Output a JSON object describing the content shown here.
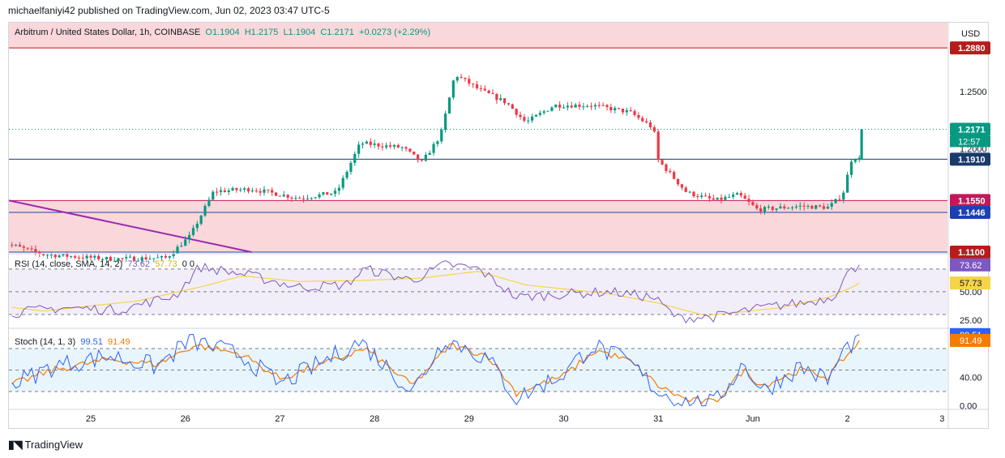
{
  "header": {
    "published": "michaelfaniyi42 published on TradingView.com, Jun 02, 2023 03:47 UTC-5"
  },
  "price_legend": {
    "symbol": "Arbitrum / United States Dollar, 1h, COINBASE",
    "open": "O1.1904",
    "high": "H1.2175",
    "low": "L1.1904",
    "close": "C1.2171",
    "change": "+0.0273 (+2.29%)"
  },
  "rsi_legend": {
    "label": "RSI (14, close, SMA, 14, 2)",
    "rsi": "73.62",
    "sma": "57.73",
    "extra": "0 0"
  },
  "stoch_legend": {
    "label": "Stoch (14, 1, 3)",
    "k": "99.51",
    "d": "91.49"
  },
  "footer": {
    "brand": "TradingView"
  },
  "colors": {
    "up": "#089981",
    "down": "#f23645",
    "zone": "#f8d0d4",
    "rsi_line": "#7e57c2",
    "rsi_sma": "#f5d547",
    "stoch_k": "#2962ff",
    "stoch_d": "#f57c00",
    "trendline": "#9c27b0"
  },
  "chart_data": [
    {
      "type": "candlestick",
      "title": "Arbitrum / United States Dollar, 1h, COINBASE",
      "currency": "USD",
      "x_ticks": [
        "25",
        "26",
        "27",
        "28",
        "29",
        "30",
        "31",
        "Jun",
        "2",
        "3"
      ],
      "y_ticks": [
        "1.2500",
        "1.2000"
      ],
      "ylim": [
        1.11,
        1.31
      ],
      "price_labels": [
        "1.2880",
        "1.2171",
        "12:57",
        "1.1910",
        "1.1550",
        "1.1446",
        "1.1100"
      ],
      "horizontal_levels": [
        1.288,
        1.191,
        1.155,
        1.1446,
        1.11
      ],
      "current_price": 1.2171,
      "countdown": "12:57",
      "zones": [
        {
          "from": 1.288,
          "to": 1.31
        },
        {
          "from": 1.11,
          "to": 1.155
        }
      ],
      "trendline": {
        "from": {
          "day": 24.0,
          "price": 1.155
        },
        "to": {
          "day": 26.7,
          "price": 1.11
        }
      },
      "anchors": [
        {
          "day": 24.0,
          "price": 1.12
        },
        {
          "day": 24.5,
          "price": 1.108
        },
        {
          "day": 25.2,
          "price": 1.104
        },
        {
          "day": 25.8,
          "price": 1.105
        },
        {
          "day": 26.05,
          "price": 1.124
        },
        {
          "day": 26.3,
          "price": 1.163
        },
        {
          "day": 26.7,
          "price": 1.165
        },
        {
          "day": 27.2,
          "price": 1.157
        },
        {
          "day": 27.6,
          "price": 1.162
        },
        {
          "day": 27.85,
          "price": 1.205
        },
        {
          "day": 28.3,
          "price": 1.201
        },
        {
          "day": 28.5,
          "price": 1.188
        },
        {
          "day": 28.7,
          "price": 1.212
        },
        {
          "day": 28.85,
          "price": 1.265
        },
        {
          "day": 29.1,
          "price": 1.252
        },
        {
          "day": 29.4,
          "price": 1.24
        },
        {
          "day": 29.6,
          "price": 1.223
        },
        {
          "day": 29.9,
          "price": 1.238
        },
        {
          "day": 30.3,
          "price": 1.238
        },
        {
          "day": 30.7,
          "price": 1.232
        },
        {
          "day": 30.95,
          "price": 1.218
        },
        {
          "day": 31.0,
          "price": 1.19
        },
        {
          "day": 31.3,
          "price": 1.162
        },
        {
          "day": 31.6,
          "price": 1.155
        },
        {
          "day": 31.85,
          "price": 1.16
        },
        {
          "day": 32.05,
          "price": 1.147
        },
        {
          "day": 32.5,
          "price": 1.15
        },
        {
          "day": 32.8,
          "price": 1.149
        },
        {
          "day": 32.95,
          "price": 1.16
        },
        {
          "day": 33.05,
          "price": 1.193
        },
        {
          "day": 33.15,
          "price": 1.1904
        }
      ],
      "last_candle": {
        "open": 1.1904,
        "high": 1.2175,
        "low": 1.1904,
        "close": 1.2171
      }
    },
    {
      "type": "line",
      "title": "RSI (14, close, SMA, 14, 2)",
      "y_ticks": [
        "50.00",
        "25.00"
      ],
      "levels": [
        70,
        50,
        30
      ],
      "ylim": [
        20,
        82
      ],
      "last_values": {
        "rsi": 73.62,
        "sma": 57.73
      },
      "rsi_anchors": [
        {
          "day": 24.0,
          "v": 30
        },
        {
          "day": 24.7,
          "v": 36
        },
        {
          "day": 25.3,
          "v": 34
        },
        {
          "day": 25.9,
          "v": 47
        },
        {
          "day": 26.15,
          "v": 72
        },
        {
          "day": 26.7,
          "v": 64
        },
        {
          "day": 27.2,
          "v": 54
        },
        {
          "day": 27.7,
          "v": 56
        },
        {
          "day": 27.9,
          "v": 70
        },
        {
          "day": 28.4,
          "v": 60
        },
        {
          "day": 28.75,
          "v": 74
        },
        {
          "day": 29.1,
          "v": 70
        },
        {
          "day": 29.5,
          "v": 45
        },
        {
          "day": 30.0,
          "v": 48
        },
        {
          "day": 30.5,
          "v": 50
        },
        {
          "day": 30.95,
          "v": 45
        },
        {
          "day": 31.2,
          "v": 27
        },
        {
          "day": 31.6,
          "v": 28
        },
        {
          "day": 32.1,
          "v": 36
        },
        {
          "day": 32.6,
          "v": 41
        },
        {
          "day": 32.85,
          "v": 46
        },
        {
          "day": 33.0,
          "v": 66
        },
        {
          "day": 33.15,
          "v": 73.62
        }
      ],
      "sma_anchors": [
        {
          "day": 24.0,
          "v": 38
        },
        {
          "day": 24.5,
          "v": 33
        },
        {
          "day": 25.5,
          "v": 42
        },
        {
          "day": 26.2,
          "v": 55
        },
        {
          "day": 26.6,
          "v": 64
        },
        {
          "day": 27.2,
          "v": 59
        },
        {
          "day": 27.9,
          "v": 60
        },
        {
          "day": 28.5,
          "v": 62
        },
        {
          "day": 29.1,
          "v": 68
        },
        {
          "day": 29.6,
          "v": 56
        },
        {
          "day": 30.5,
          "v": 48
        },
        {
          "day": 31.0,
          "v": 40
        },
        {
          "day": 31.5,
          "v": 29
        },
        {
          "day": 32.3,
          "v": 36
        },
        {
          "day": 32.8,
          "v": 45
        },
        {
          "day": 33.15,
          "v": 57.73
        }
      ]
    },
    {
      "type": "line",
      "title": "Stoch (14, 1, 3)",
      "y_ticks": [
        "40.00",
        "0.00"
      ],
      "levels": [
        80,
        50,
        20
      ],
      "ylim": [
        -5,
        105
      ],
      "last_values": {
        "k": 99.51,
        "d": 91.49
      },
      "k_anchors": [
        {
          "day": 24.0,
          "v": 20
        },
        {
          "day": 24.6,
          "v": 55
        },
        {
          "day": 25.2,
          "v": 70
        },
        {
          "day": 25.7,
          "v": 55
        },
        {
          "day": 26.05,
          "v": 92
        },
        {
          "day": 26.6,
          "v": 70
        },
        {
          "day": 27.0,
          "v": 30
        },
        {
          "day": 27.5,
          "v": 65
        },
        {
          "day": 27.85,
          "v": 90
        },
        {
          "day": 28.4,
          "v": 20
        },
        {
          "day": 28.75,
          "v": 95
        },
        {
          "day": 29.2,
          "v": 65
        },
        {
          "day": 29.5,
          "v": 10
        },
        {
          "day": 30.0,
          "v": 45
        },
        {
          "day": 30.3,
          "v": 85
        },
        {
          "day": 30.7,
          "v": 60
        },
        {
          "day": 31.0,
          "v": 20
        },
        {
          "day": 31.3,
          "v": 5
        },
        {
          "day": 31.6,
          "v": 3
        },
        {
          "day": 31.9,
          "v": 60
        },
        {
          "day": 32.1,
          "v": 20
        },
        {
          "day": 32.5,
          "v": 55
        },
        {
          "day": 32.8,
          "v": 35
        },
        {
          "day": 32.95,
          "v": 75
        },
        {
          "day": 33.15,
          "v": 99.51
        }
      ],
      "d_anchors": [
        {
          "day": 24.0,
          "v": 22
        },
        {
          "day": 24.6,
          "v": 50
        },
        {
          "day": 25.2,
          "v": 65
        },
        {
          "day": 25.7,
          "v": 58
        },
        {
          "day": 26.1,
          "v": 85
        },
        {
          "day": 26.6,
          "v": 72
        },
        {
          "day": 27.0,
          "v": 38
        },
        {
          "day": 27.5,
          "v": 60
        },
        {
          "day": 27.9,
          "v": 80
        },
        {
          "day": 28.4,
          "v": 28
        },
        {
          "day": 28.8,
          "v": 85
        },
        {
          "day": 29.2,
          "v": 70
        },
        {
          "day": 29.5,
          "v": 18
        },
        {
          "day": 30.0,
          "v": 42
        },
        {
          "day": 30.35,
          "v": 78
        },
        {
          "day": 30.7,
          "v": 62
        },
        {
          "day": 31.0,
          "v": 28
        },
        {
          "day": 31.3,
          "v": 8
        },
        {
          "day": 31.6,
          "v": 5
        },
        {
          "day": 31.9,
          "v": 50
        },
        {
          "day": 32.1,
          "v": 28
        },
        {
          "day": 32.5,
          "v": 50
        },
        {
          "day": 32.8,
          "v": 40
        },
        {
          "day": 32.95,
          "v": 65
        },
        {
          "day": 33.15,
          "v": 91.49
        }
      ]
    }
  ]
}
